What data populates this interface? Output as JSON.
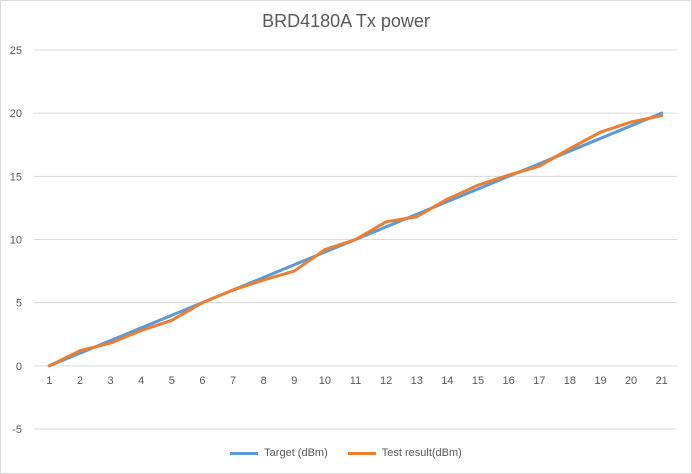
{
  "chart_data": {
    "type": "line",
    "title": "BRD4180A Tx power",
    "xlabel": "",
    "ylabel": "",
    "categories": [
      "1",
      "2",
      "3",
      "4",
      "5",
      "6",
      "7",
      "8",
      "9",
      "10",
      "11",
      "12",
      "13",
      "14",
      "15",
      "16",
      "17",
      "18",
      "19",
      "20",
      "21"
    ],
    "ylim": [
      -5,
      25
    ],
    "yticks": [
      -5,
      0,
      5,
      10,
      15,
      20,
      25
    ],
    "grid": true,
    "legend_position": "bottom",
    "series": [
      {
        "name": "Target (dBm)",
        "color": "#5B9BD5",
        "values": [
          0,
          1,
          2,
          3,
          4,
          5,
          6,
          7,
          8,
          9,
          10,
          11,
          12,
          13,
          14,
          15,
          16,
          17,
          18,
          19,
          20
        ]
      },
      {
        "name": "Test result(dBm)",
        "color": "#ED7D31",
        "values": [
          0,
          1.2,
          1.8,
          2.8,
          3.6,
          5.0,
          6.0,
          6.8,
          7.5,
          9.2,
          10.0,
          11.4,
          11.8,
          13.2,
          14.3,
          15.1,
          15.8,
          17.2,
          18.5,
          19.3,
          19.8
        ]
      }
    ]
  }
}
